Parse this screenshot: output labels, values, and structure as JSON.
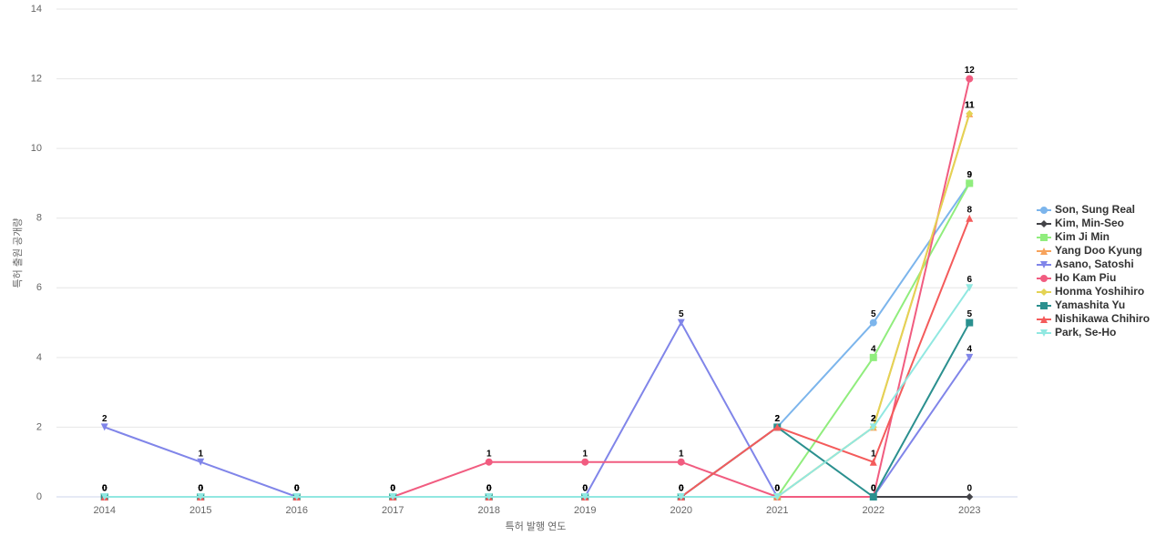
{
  "chart_data": {
    "type": "line",
    "x_label": "특허 발행 연도",
    "y_label": "특허 출원 공개량",
    "categories": [
      "2014",
      "2015",
      "2016",
      "2017",
      "2018",
      "2019",
      "2020",
      "2021",
      "2022",
      "2023"
    ],
    "ylim": [
      0,
      14
    ],
    "yticks": [
      0,
      2,
      4,
      6,
      8,
      10,
      12,
      14
    ],
    "grid": true,
    "legend": "right",
    "series": [
      {
        "name": "Son, Sung Real",
        "color": "#7cb5ec",
        "marker": "circle",
        "values": [
          0,
          0,
          0,
          0,
          0,
          0,
          0,
          2,
          5,
          9
        ]
      },
      {
        "name": "Kim, Min-Seo",
        "color": "#434348",
        "marker": "diamond",
        "values": [
          0,
          0,
          0,
          0,
          0,
          0,
          0,
          0,
          0,
          0
        ]
      },
      {
        "name": "Kim Ji Min",
        "color": "#90ed7d",
        "marker": "square",
        "values": [
          0,
          0,
          0,
          0,
          0,
          0,
          0,
          0,
          4,
          9
        ]
      },
      {
        "name": "Yang Doo Kyung",
        "color": "#f7a35c",
        "marker": "triangle",
        "values": [
          0,
          0,
          0,
          0,
          0,
          0,
          0,
          0,
          2,
          11
        ]
      },
      {
        "name": "Asano, Satoshi",
        "color": "#8085e9",
        "marker": "triangle-down",
        "values": [
          2,
          1,
          0,
          0,
          0,
          0,
          5,
          0,
          0,
          4
        ]
      },
      {
        "name": "Ho Kam Piu",
        "color": "#f15c80",
        "marker": "circle",
        "values": [
          0,
          0,
          0,
          0,
          1,
          1,
          1,
          0,
          0,
          12
        ]
      },
      {
        "name": "Honma Yoshihiro",
        "color": "#e4d354",
        "marker": "diamond",
        "values": [
          0,
          0,
          0,
          0,
          0,
          0,
          0,
          0,
          2,
          11
        ]
      },
      {
        "name": "Yamashita Yu",
        "color": "#2b908f",
        "marker": "square",
        "values": [
          0,
          0,
          0,
          0,
          0,
          0,
          0,
          2,
          0,
          5
        ]
      },
      {
        "name": "Nishikawa Chihiro",
        "color": "#f45b5b",
        "marker": "triangle",
        "values": [
          0,
          0,
          0,
          0,
          0,
          0,
          0,
          2,
          1,
          8
        ]
      },
      {
        "name": "Park, Se-Ho",
        "color": "#91e8e1",
        "marker": "triangle-down",
        "values": [
          0,
          0,
          0,
          0,
          0,
          0,
          0,
          0,
          2,
          6
        ]
      }
    ]
  }
}
